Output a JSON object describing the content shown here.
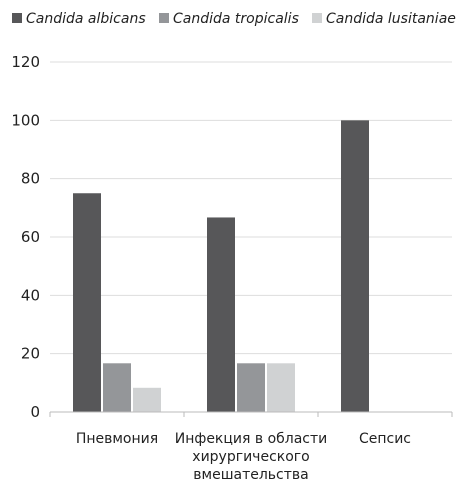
{
  "chart_data": {
    "type": "bar",
    "categories": [
      [
        "Пневмония"
      ],
      [
        "Инфекция в области",
        "хирургического",
        "вмешательства"
      ],
      [
        "Сепсис"
      ]
    ],
    "series": [
      {
        "name": "Candida albicans",
        "color": "#575759",
        "values": [
          75,
          66.7,
          100
        ]
      },
      {
        "name": "Candida tropicalis",
        "color": "#949699",
        "values": [
          16.7,
          16.7,
          0
        ]
      },
      {
        "name": "Candida lusitaniae",
        "color": "#d0d2d3",
        "values": [
          8.3,
          16.7,
          0
        ]
      }
    ],
    "ylim": [
      0,
      120
    ],
    "yticks": [
      "0",
      "20",
      "40",
      "60",
      "80",
      "100",
      "120"
    ],
    "grid": true,
    "legend": "top",
    "title": "",
    "xlabel": "",
    "ylabel": ""
  }
}
